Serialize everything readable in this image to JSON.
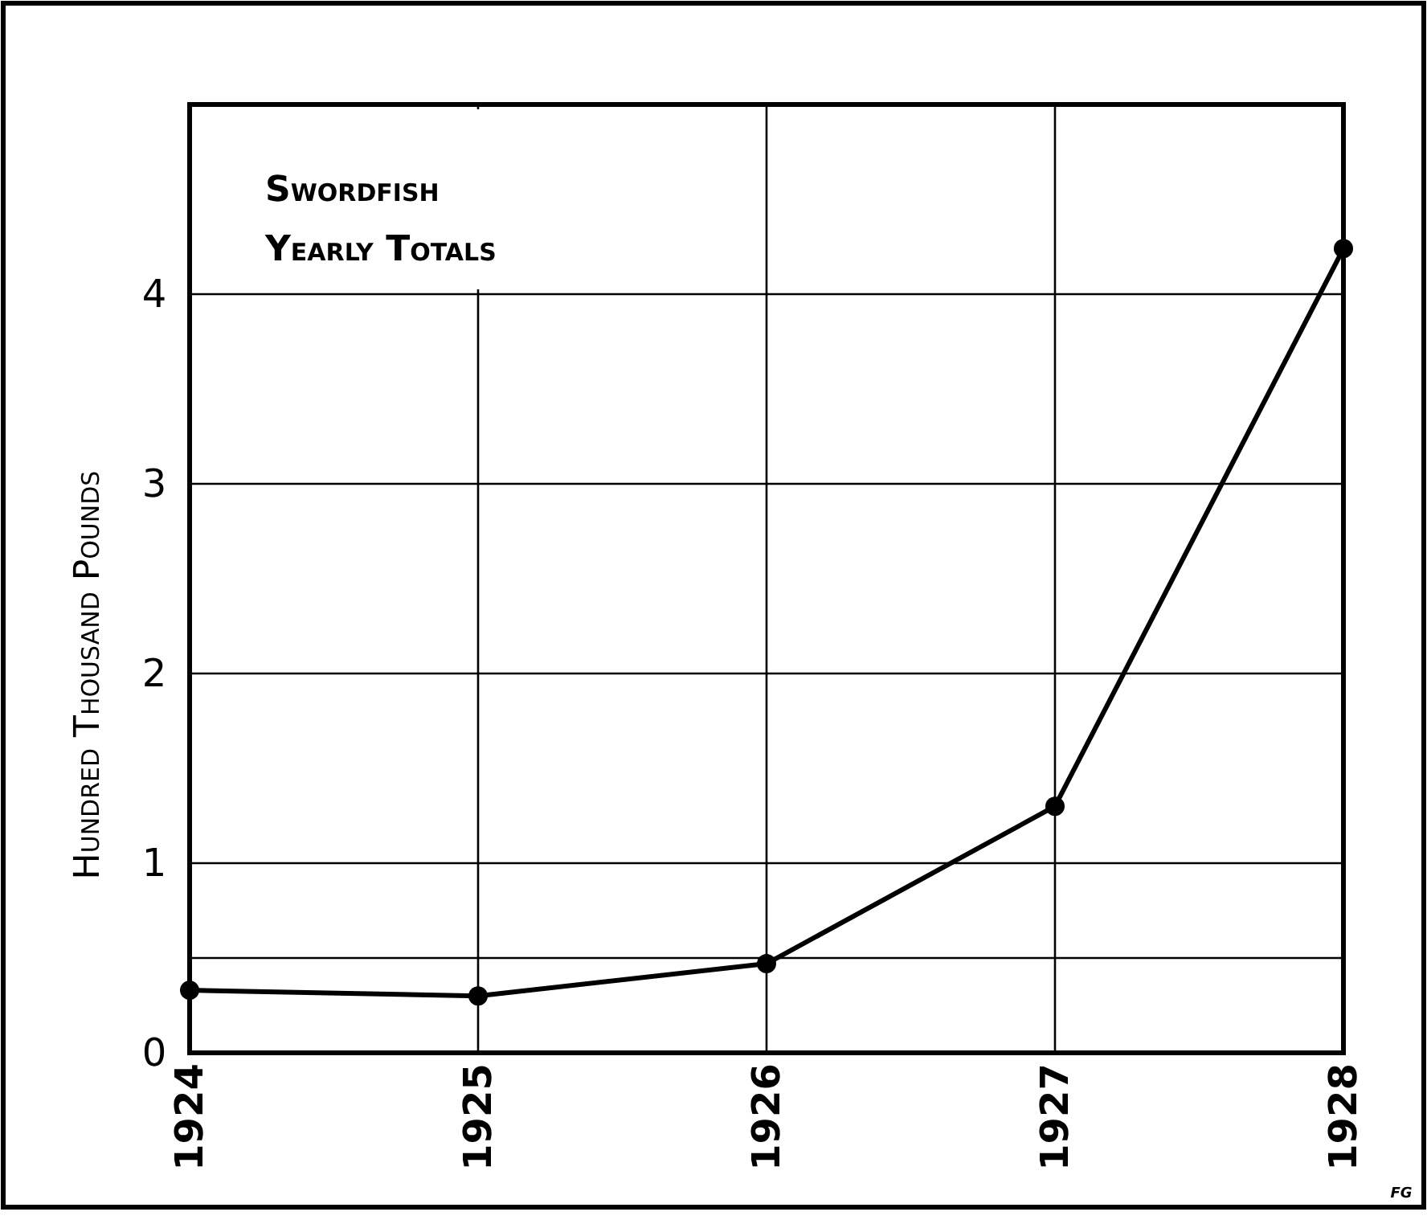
{
  "chart_data": {
    "type": "line",
    "title": "Swordfish",
    "subtitle": "Yearly Totals",
    "ylabel": "Hundred Thousand Pounds",
    "annotations": [
      "FG"
    ],
    "x": [
      1924,
      1925,
      1926,
      1927,
      1928
    ],
    "series": [
      {
        "color": "#000000",
        "values": [
          0.33,
          0.3,
          0.47,
          1.3,
          4.24
        ]
      }
    ],
    "xlim": [
      1924,
      1928
    ],
    "xticks": [
      1924,
      1925,
      1926,
      1927,
      1928
    ],
    "ylim": [
      0,
      5
    ],
    "yticks": [
      0,
      {
        "value": 0.5,
        "label": null
      },
      1,
      2,
      3,
      4
    ],
    "grid": true,
    "marker": "circle",
    "line_style": "solid"
  }
}
